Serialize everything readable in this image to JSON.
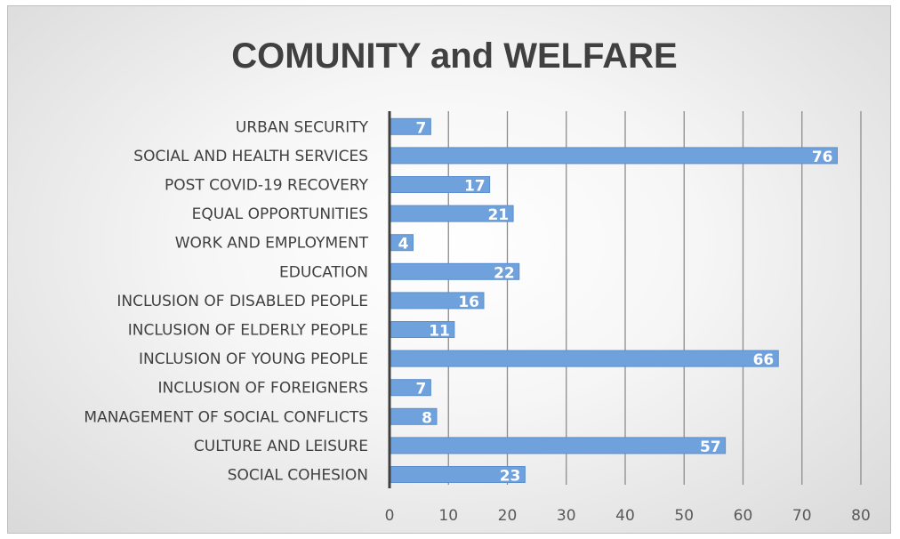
{
  "chart_data": {
    "type": "bar",
    "orientation": "horizontal",
    "title": "COMUNITY and WELFARE",
    "categories": [
      "URBAN SECURITY",
      "SOCIAL AND HEALTH SERVICES",
      "POST COVID-19 RECOVERY",
      "EQUAL OPPORTUNITIES",
      "WORK AND EMPLOYMENT",
      "EDUCATION",
      "INCLUSION OF DISABLED PEOPLE",
      "INCLUSION OF ELDERLY PEOPLE",
      "INCLUSION OF YOUNG PEOPLE",
      "INCLUSION OF FOREIGNERS",
      "MANAGEMENT OF SOCIAL CONFLICTS",
      "CULTURE AND LEISURE",
      "SOCIAL COHESION"
    ],
    "values": [
      7,
      76,
      17,
      21,
      4,
      22,
      16,
      11,
      66,
      7,
      8,
      57,
      23
    ],
    "xlim": [
      0,
      80
    ],
    "x_ticks": [
      0,
      10,
      20,
      30,
      40,
      50,
      60,
      70,
      80
    ],
    "grid": "vertical",
    "data_labels": true,
    "legend": "none",
    "colors": {
      "bar": "#6fa1dc",
      "bar_stroke": "#5b8fd0",
      "grid": "#8c8c8c",
      "axis": "#404040"
    }
  }
}
